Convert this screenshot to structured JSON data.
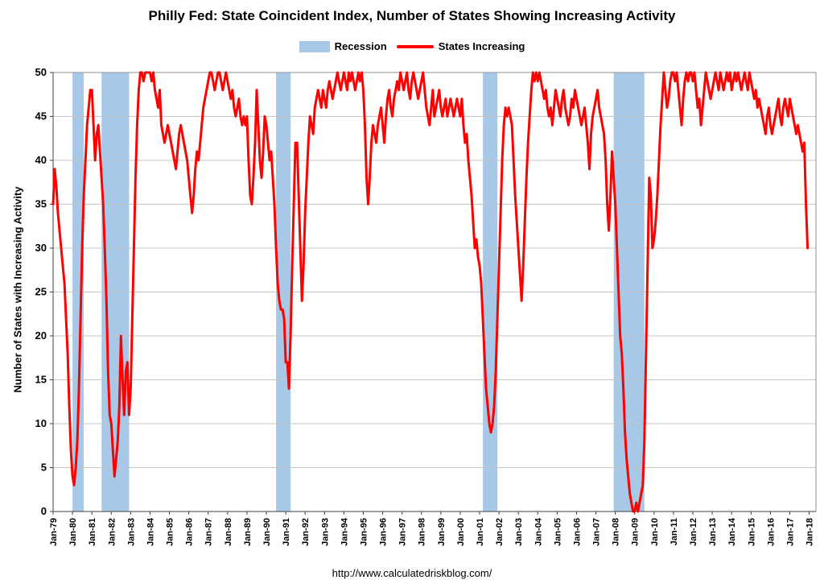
{
  "legend": [
    {
      "label": "Recession",
      "type": "band"
    },
    {
      "label": "States Increasing",
      "type": "line"
    }
  ],
  "footer": {
    "url_text": "http://www.calculatedriskblog.com/"
  },
  "chart_data": {
    "type": "line",
    "title": "Philly Fed: State Coincident Index, Number of States Showing Increasing Activity",
    "xlabel": "",
    "ylabel": "Number of States with Increasing Activity",
    "ylim": [
      0,
      50
    ],
    "y_step": 5,
    "x_domain": [
      1979,
      2018.35
    ],
    "grid": true,
    "legend_position": "top",
    "colors": {
      "line": "#FF0000",
      "recession": "#A8C8E8",
      "grid": "#C6C6C6",
      "axis": "#404040",
      "plot_border": "#909090",
      "text": "#000000"
    },
    "x_ticks": [
      "Jan-79",
      "Jan-80",
      "Jan-81",
      "Jan-82",
      "Jan-83",
      "Jan-84",
      "Jan-85",
      "Jan-86",
      "Jan-87",
      "Jan-88",
      "Jan-89",
      "Jan-90",
      "Jan-91",
      "Jan-92",
      "Jan-93",
      "Jan-94",
      "Jan-95",
      "Jan-96",
      "Jan-97",
      "Jan-98",
      "Jan-99",
      "Jan-00",
      "Jan-01",
      "Jan-02",
      "Jan-03",
      "Jan-04",
      "Jan-05",
      "Jan-06",
      "Jan-07",
      "Jan-08",
      "Jan-09",
      "Jan-10",
      "Jan-11",
      "Jan-12",
      "Jan-13",
      "Jan-14",
      "Jan-15",
      "Jan-16",
      "Jan-17",
      "Jan-18"
    ],
    "recessions": [
      [
        1980.0,
        1980.58
      ],
      [
        1981.5,
        1982.92
      ],
      [
        1990.5,
        1991.25
      ],
      [
        2001.17,
        2001.92
      ],
      [
        2007.92,
        2009.5
      ]
    ],
    "series": [
      {
        "name": "States Increasing",
        "start_year": 1979,
        "points_per_year": 12,
        "values": [
          35,
          39,
          37,
          34,
          32,
          30,
          28,
          26,
          22,
          18,
          12,
          7,
          4,
          3,
          5,
          8,
          14,
          22,
          30,
          36,
          40,
          44,
          46,
          48,
          48,
          44,
          40,
          43,
          44,
          41,
          38,
          35,
          30,
          24,
          16,
          11,
          10,
          7,
          4,
          6,
          8,
          12,
          20,
          15,
          11,
          16,
          17,
          11,
          14,
          22,
          30,
          38,
          44,
          48,
          50,
          50,
          49,
          50,
          50,
          50,
          50,
          49,
          50,
          48,
          47,
          46,
          48,
          44,
          43,
          42,
          43,
          44,
          43,
          42,
          41,
          40,
          39,
          41,
          43,
          44,
          43,
          42,
          41,
          40,
          38,
          36,
          34,
          36,
          39,
          41,
          40,
          42,
          44,
          46,
          47,
          48,
          49,
          50,
          50,
          49,
          48,
          49,
          50,
          50,
          49,
          48,
          49,
          50,
          49,
          48,
          47,
          48,
          46,
          45,
          46,
          47,
          45,
          44,
          45,
          44,
          45,
          40,
          36,
          35,
          38,
          42,
          48,
          44,
          40,
          38,
          41,
          45,
          44,
          42,
          40,
          41,
          38,
          35,
          30,
          26,
          24,
          23,
          23,
          22,
          17,
          17,
          14,
          20,
          28,
          35,
          42,
          42,
          36,
          30,
          24,
          28,
          34,
          38,
          42,
          45,
          44,
          43,
          46,
          47,
          48,
          47,
          46,
          48,
          47,
          46,
          48,
          49,
          48,
          47,
          48,
          49,
          50,
          49,
          48,
          49,
          50,
          49,
          48,
          50,
          49,
          50,
          49,
          48,
          49,
          50,
          49,
          50,
          48,
          44,
          38,
          35,
          38,
          42,
          44,
          43,
          42,
          44,
          45,
          46,
          44,
          42,
          45,
          47,
          48,
          46,
          45,
          47,
          48,
          49,
          48,
          50,
          49,
          48,
          49,
          50,
          48,
          47,
          49,
          50,
          49,
          48,
          47,
          48,
          49,
          50,
          48,
          46,
          45,
          44,
          46,
          48,
          45,
          46,
          47,
          48,
          46,
          45,
          46,
          47,
          45,
          46,
          47,
          46,
          45,
          46,
          47,
          46,
          45,
          47,
          44,
          42,
          43,
          40,
          38,
          36,
          33,
          30,
          31,
          29,
          28,
          26,
          22,
          18,
          14,
          12,
          10,
          9,
          10,
          12,
          16,
          22,
          28,
          34,
          40,
          44,
          46,
          45,
          46,
          45,
          44,
          40,
          36,
          33,
          30,
          27,
          24,
          28,
          33,
          38,
          42,
          45,
          48,
          50,
          49,
          50,
          49,
          50,
          49,
          48,
          47,
          48,
          46,
          45,
          46,
          44,
          46,
          48,
          47,
          46,
          45,
          47,
          48,
          46,
          45,
          44,
          45,
          47,
          46,
          48,
          47,
          46,
          45,
          44,
          45,
          46,
          44,
          42,
          39,
          43,
          45,
          46,
          47,
          48,
          46,
          45,
          44,
          43,
          40,
          35,
          32,
          36,
          41,
          38,
          35,
          30,
          25,
          20,
          18,
          14,
          9,
          6,
          4,
          2,
          1,
          0,
          0,
          1,
          0,
          1,
          2,
          3,
          8,
          18,
          28,
          38,
          36,
          30,
          31,
          33,
          36,
          40,
          44,
          47,
          50,
          48,
          46,
          47,
          49,
          50,
          50,
          49,
          50,
          48,
          46,
          44,
          47,
          49,
          50,
          49,
          50,
          50,
          49,
          50,
          48,
          46,
          47,
          44,
          46,
          48,
          50,
          49,
          48,
          47,
          48,
          49,
          50,
          49,
          48,
          50,
          49,
          48,
          49,
          50,
          49,
          50,
          48,
          49,
          50,
          49,
          50,
          49,
          48,
          49,
          50,
          49,
          48,
          50,
          49,
          48,
          47,
          48,
          46,
          47,
          46,
          45,
          44,
          43,
          45,
          46,
          44,
          43,
          44,
          45,
          46,
          47,
          45,
          44,
          46,
          47,
          46,
          45,
          47,
          46,
          45,
          44,
          43,
          44,
          43,
          42,
          41,
          42,
          35,
          30
        ]
      }
    ]
  }
}
